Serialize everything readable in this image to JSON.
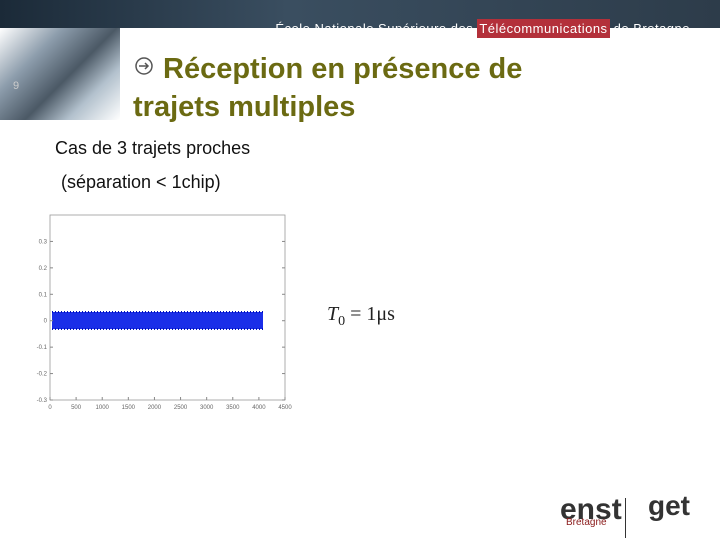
{
  "header": {
    "parts": [
      "École Nationale Supérieure des ",
      "Télécommunications",
      " de Bretagne"
    ]
  },
  "slide_number": "9",
  "title": {
    "lines": [
      "Réception en présence de",
      "trajets multiples"
    ]
  },
  "body": [
    "Cas de 3 trajets proches",
    "(séparation < 1chip)"
  ],
  "formula": {
    "symbol": "T",
    "subscript": "0",
    "rhs": "= 1μs"
  },
  "figure": {
    "xlim": [
      0,
      4500
    ],
    "ylim": [
      -0.3,
      0.4
    ],
    "xticks": [
      0,
      500,
      1000,
      1500,
      2000,
      2500,
      3000,
      3500,
      4000,
      4500
    ],
    "yticks": [
      -0.3,
      -0.2,
      -0.1,
      0,
      0.1,
      0.2,
      0.3
    ]
  },
  "logos": {
    "enst": "enst",
    "bretagne": "Bretagne",
    "get": "get"
  }
}
